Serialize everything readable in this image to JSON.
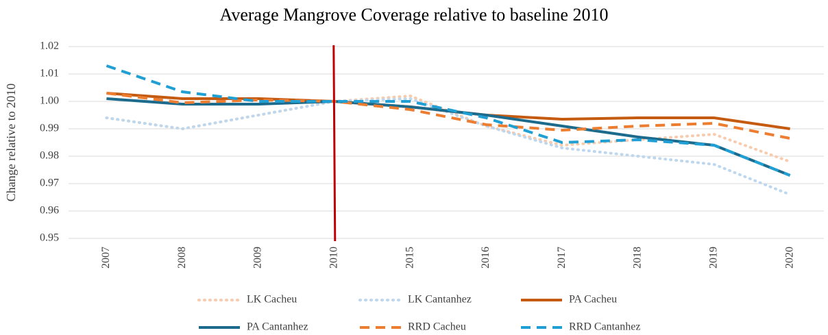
{
  "chart_data": {
    "type": "line",
    "title": "Average Mangrove Coverage relative to baseline 2010",
    "y_label": "Change relative to 2010",
    "categories": [
      "2007",
      "2008",
      "2009",
      "2010",
      "2015",
      "2016",
      "2017",
      "2018",
      "2019",
      "2020"
    ],
    "series": [
      {
        "name": "LK Cacheu",
        "color": "#f8cbad",
        "dash": "dotted",
        "values": [
          0.994,
          0.99,
          0.995,
          1.0,
          1.002,
          0.991,
          0.984,
          0.986,
          0.988,
          0.978
        ]
      },
      {
        "name": "LK Cantanhez",
        "color": "#bdd7ee",
        "dash": "dotted",
        "values": [
          0.994,
          0.99,
          0.995,
          1.0,
          1.001,
          0.991,
          0.983,
          0.98,
          0.977,
          0.966
        ]
      },
      {
        "name": "PA Cacheu",
        "color": "#c55a11",
        "dash": "solid",
        "values": [
          1.003,
          1.001,
          1.001,
          1.0,
          0.998,
          0.995,
          0.9935,
          0.994,
          0.994,
          0.99
        ]
      },
      {
        "name": "PA Cantanhez",
        "color": "#1c6b8c",
        "dash": "solid",
        "values": [
          1.001,
          0.999,
          0.999,
          1.0,
          0.998,
          0.995,
          0.991,
          0.987,
          0.984,
          0.973
        ]
      },
      {
        "name": "RRD Cacheu",
        "color": "#ed7d31",
        "dash": "dashed",
        "values": [
          1.003,
          0.9995,
          1.0005,
          1.0,
          0.997,
          0.9915,
          0.9895,
          0.991,
          0.992,
          0.9865
        ]
      },
      {
        "name": "RRD Cantanhez",
        "color": "#1f9fd3",
        "dash": "dashed",
        "values": [
          1.013,
          1.0035,
          1.0,
          1.0,
          1.0,
          0.994,
          0.985,
          0.986,
          0.984,
          0.973
        ]
      }
    ],
    "reference_line": {
      "x": "2010",
      "color": "#c00000"
    },
    "ylim": [
      0.95,
      1.02
    ],
    "yticks": [
      {
        "value": 0.95,
        "label": "0.95"
      },
      {
        "value": 0.96,
        "label": "0.96"
      },
      {
        "value": 0.97,
        "label": "0.97"
      },
      {
        "value": 0.98,
        "label": "0.98"
      },
      {
        "value": 0.99,
        "label": "0.99"
      },
      {
        "value": 1.0,
        "label": "1.00"
      },
      {
        "value": 1.01,
        "label": "1.01"
      },
      {
        "value": 1.02,
        "label": "1.02"
      }
    ],
    "grid": true,
    "legend": "bottom"
  }
}
